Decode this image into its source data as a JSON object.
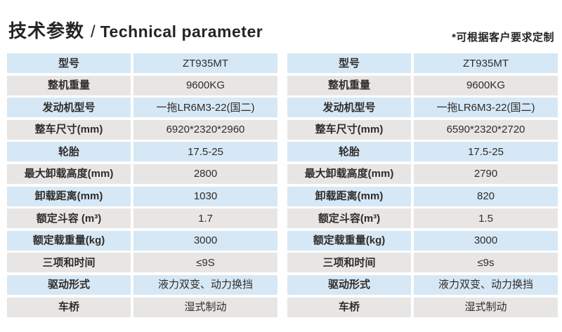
{
  "header": {
    "title_zh": "技术参数",
    "title_sep": "/",
    "title_en": "Technical parameter",
    "note": "*可根据客户要求定制"
  },
  "tables": [
    {
      "id": "spec-table-left",
      "rows": [
        {
          "label": "型号",
          "value": "ZT935MT"
        },
        {
          "label": "整机重量",
          "value": "9600KG"
        },
        {
          "label": "发动机型号",
          "value": "一拖LR6M3-22(国二)"
        },
        {
          "label": "整车尺寸(mm)",
          "value": "6920*2320*2960"
        },
        {
          "label": "轮胎",
          "value": "17.5-25"
        },
        {
          "label": "最大卸载高度(mm)",
          "value": "2800"
        },
        {
          "label": "卸载距离(mm)",
          "value": "1030"
        },
        {
          "label": "额定斗容 (m³)",
          "value": "1.7"
        },
        {
          "label": "额定载重量(kg)",
          "value": "3000"
        },
        {
          "label": "三项和时间",
          "value": "≤9S"
        },
        {
          "label": "驱动形式",
          "value": "液力双变、动力换挡"
        },
        {
          "label": "车桥",
          "value": "湿式制动"
        }
      ]
    },
    {
      "id": "spec-table-right",
      "rows": [
        {
          "label": "型号",
          "value": "ZT935MT"
        },
        {
          "label": "整机重量",
          "value": "9600KG"
        },
        {
          "label": "发动机型号",
          "value": "一拖LR6M3-22(国二)"
        },
        {
          "label": "整车尺寸(mm)",
          "value": "6590*2320*2720"
        },
        {
          "label": "轮胎",
          "value": "17.5-25"
        },
        {
          "label": "最大卸载高度(mm)",
          "value": "2790"
        },
        {
          "label": "卸载距离(mm)",
          "value": "820"
        },
        {
          "label": "额定斗容(m³)",
          "value": "1.5"
        },
        {
          "label": "额定载重量(kg)",
          "value": "3000"
        },
        {
          "label": "三项和时间",
          "value": "≤9s"
        },
        {
          "label": "驱动形式",
          "value": "液力双变、动力换挡"
        },
        {
          "label": "车桥",
          "value": "湿式制动"
        }
      ]
    }
  ],
  "colors": {
    "row_blue": "#d6e8f5",
    "row_gray": "#e8e6e4",
    "text": "#2f2c2b",
    "title": "#272324",
    "background": "#ffffff"
  }
}
